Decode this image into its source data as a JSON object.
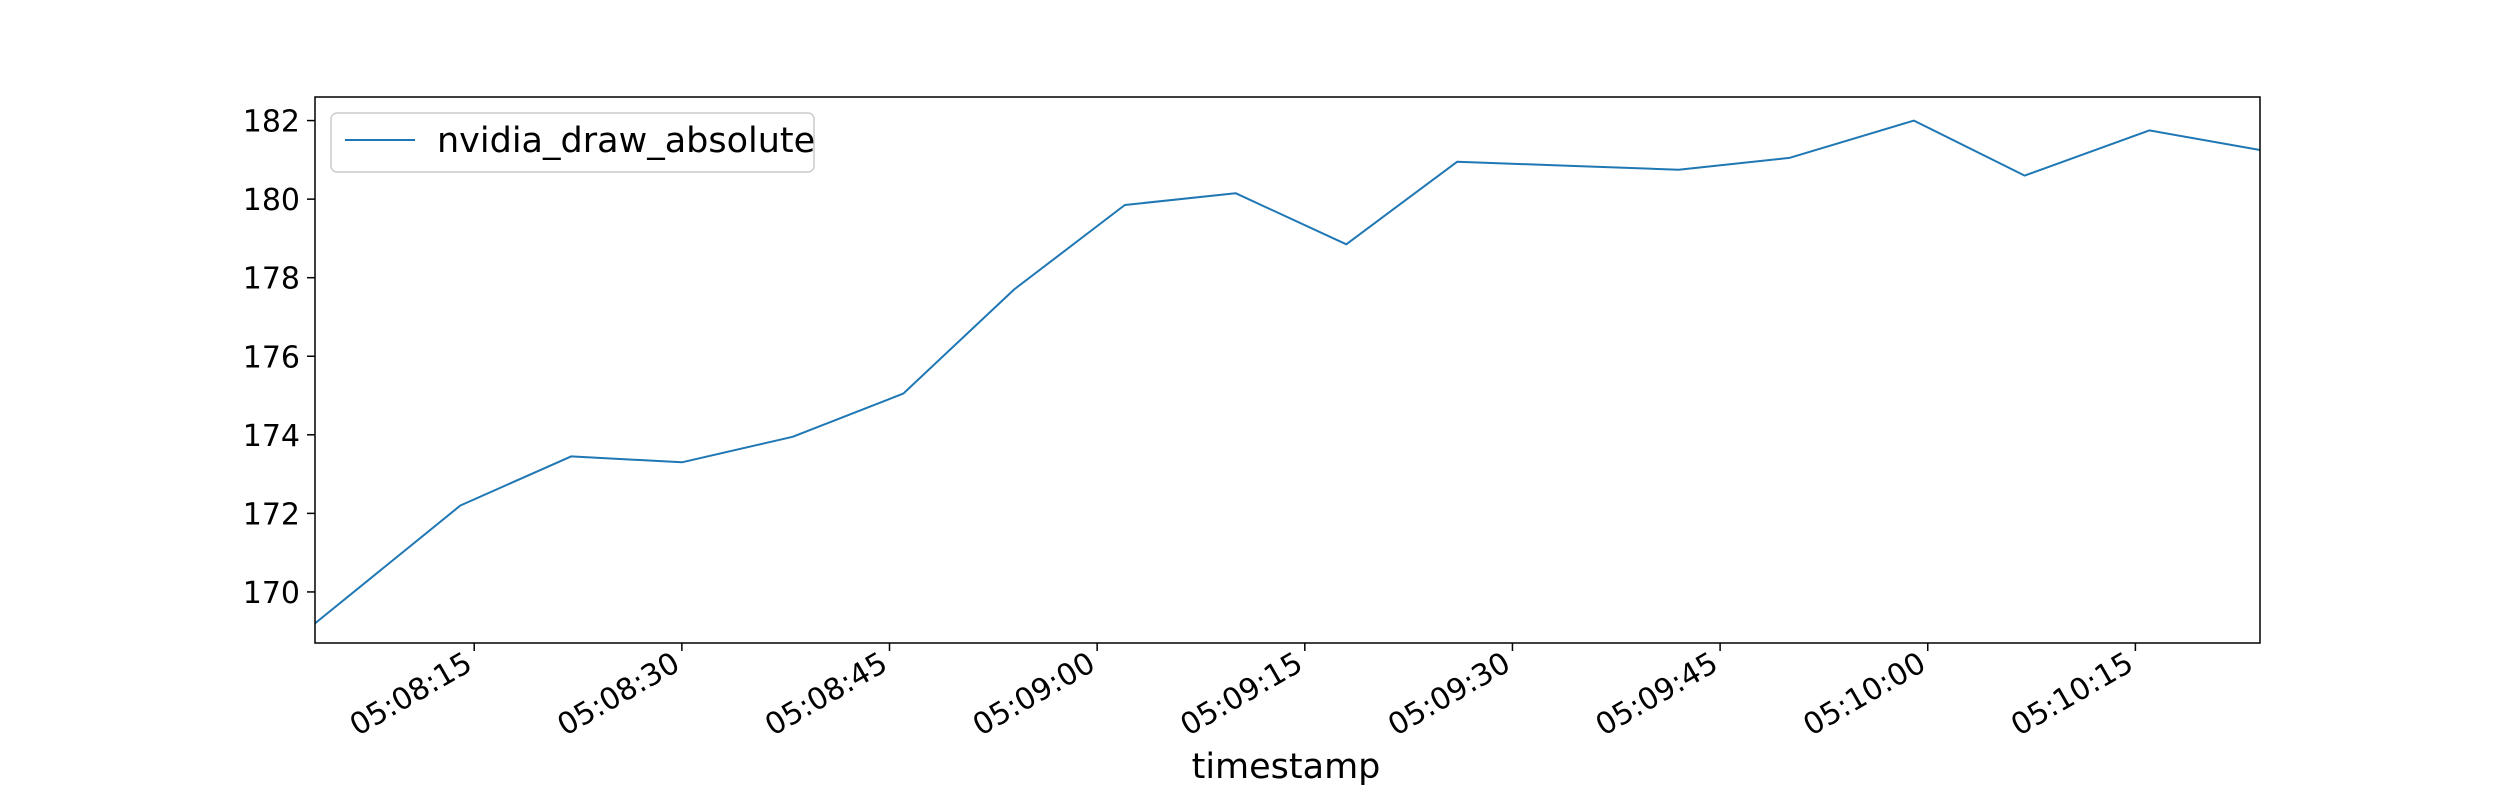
{
  "chart_data": {
    "type": "line",
    "title": "",
    "xlabel": "timestamp",
    "ylabel": "",
    "grid": false,
    "legend": {
      "location": "upper-left",
      "entries": [
        "nvidia_draw_absolute"
      ]
    },
    "x_ticks": [
      "05:08:15",
      "05:08:30",
      "05:08:45",
      "05:09:00",
      "05:09:15",
      "05:09:30",
      "05:09:45",
      "05:10:00",
      "05:10:15"
    ],
    "y_ticks": [
      170,
      172,
      174,
      176,
      178,
      180,
      182
    ],
    "xlim": [
      "05:08:03.5",
      "05:10:24"
    ],
    "ylim": [
      168.7,
      182.6
    ],
    "series": [
      {
        "name": "nvidia_draw_absolute",
        "color": "#1f77b4",
        "x": [
          "05:08:03.5",
          "05:08:14",
          "05:08:22",
          "05:08:30",
          "05:08:38",
          "05:08:46",
          "05:08:54",
          "05:09:02",
          "05:09:10",
          "05:09:18",
          "05:09:26",
          "05:09:34",
          "05:09:42",
          "05:09:50",
          "05:09:59",
          "05:10:07",
          "05:10:16",
          "05:10:24"
        ],
        "y": [
          169.2,
          172.2,
          173.45,
          173.3,
          173.95,
          175.05,
          177.7,
          179.85,
          180.15,
          178.85,
          180.95,
          180.85,
          180.75,
          181.05,
          182.0,
          180.6,
          181.75,
          181.25
        ]
      }
    ]
  }
}
